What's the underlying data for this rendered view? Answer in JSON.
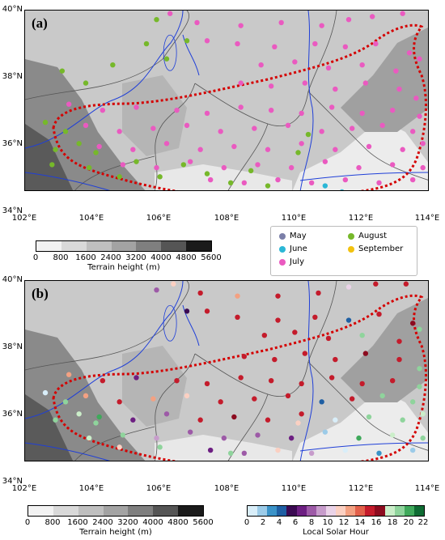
{
  "panels": [
    {
      "label": "(a)"
    },
    {
      "label": "(b)"
    }
  ],
  "axes": {
    "lat_labels": [
      "40°N",
      "38°N",
      "36°N",
      "34°N"
    ],
    "lon_labels": [
      "102°E",
      "104°E",
      "106°E",
      "108°E",
      "110°E",
      "112°E",
      "114°E"
    ]
  },
  "terrain_colorbar": {
    "ticks": [
      "0",
      "800",
      "1600",
      "2400",
      "3200",
      "4000",
      "4800",
      "5600"
    ],
    "title": "Terrain height (m)",
    "colors": [
      "#f2f2f2",
      "#d9d9d9",
      "#bfbfbf",
      "#a3a3a3",
      "#7f7f7f",
      "#555555",
      "#1a1a1a"
    ]
  },
  "month_legend": {
    "items": [
      {
        "label": "May",
        "color": "#7b7fa8"
      },
      {
        "label": "August",
        "color": "#76b82a"
      },
      {
        "label": "June",
        "color": "#2bb7d6"
      },
      {
        "label": "September",
        "color": "#f2c20f"
      },
      {
        "label": "July",
        "color": "#ea5ac0"
      }
    ]
  },
  "hour_colorbar": {
    "ticks": [
      "0",
      "2",
      "4",
      "6",
      "8",
      "10",
      "12",
      "14",
      "16",
      "18",
      "20",
      "22"
    ],
    "title": "Local Solar Hour",
    "colors": [
      "#d9eef9",
      "#9ccbe8",
      "#3b93c8",
      "#1f5fa3",
      "#3b0a52",
      "#6d1f82",
      "#9d5aa7",
      "#c79ccb",
      "#ead3e8",
      "#fbd0c2",
      "#f3a182",
      "#e2604a",
      "#c41b2b",
      "#8c0b1f",
      "#cbeec9",
      "#8fd49c",
      "#3fa95b",
      "#0e6b33"
    ]
  },
  "chart_data": [
    {
      "type": "scatter",
      "title": "(a)",
      "xlim": [
        102,
        114
      ],
      "ylim": [
        34,
        40
      ],
      "series": [
        {
          "name": "July",
          "color": "#ea5ac0",
          "points": [
            [
              106.3,
              39.9
            ],
            [
              107.1,
              39.6
            ],
            [
              108.4,
              39.5
            ],
            [
              109.6,
              39.6
            ],
            [
              110.8,
              39.5
            ],
            [
              111.6,
              39.7
            ],
            [
              112.3,
              39.8
            ],
            [
              113.2,
              39.9
            ],
            [
              107.4,
              39.0
            ],
            [
              108.3,
              38.9
            ],
            [
              109.4,
              38.8
            ],
            [
              110.6,
              38.9
            ],
            [
              111.5,
              38.8
            ],
            [
              112.4,
              38.9
            ],
            [
              113.4,
              38.6
            ],
            [
              109.0,
              38.2
            ],
            [
              110.0,
              38.3
            ],
            [
              111.0,
              38.1
            ],
            [
              112.0,
              38.2
            ],
            [
              113.0,
              38.0
            ],
            [
              113.7,
              38.4
            ],
            [
              108.4,
              37.6
            ],
            [
              109.3,
              37.5
            ],
            [
              110.3,
              37.6
            ],
            [
              111.2,
              37.4
            ],
            [
              112.1,
              37.6
            ],
            [
              113.1,
              37.4
            ],
            [
              113.6,
              37.1
            ],
            [
              103.3,
              36.9
            ],
            [
              104.3,
              36.7
            ],
            [
              105.3,
              36.8
            ],
            [
              106.5,
              36.7
            ],
            [
              107.4,
              36.6
            ],
            [
              108.4,
              36.8
            ],
            [
              109.3,
              36.7
            ],
            [
              110.2,
              36.6
            ],
            [
              111.1,
              36.8
            ],
            [
              112.0,
              36.6
            ],
            [
              112.9,
              36.7
            ],
            [
              113.7,
              36.5
            ],
            [
              103.8,
              36.2
            ],
            [
              104.8,
              36.0
            ],
            [
              105.8,
              36.1
            ],
            [
              106.8,
              36.2
            ],
            [
              107.8,
              36.0
            ],
            [
              108.8,
              36.1
            ],
            [
              109.8,
              36.2
            ],
            [
              110.8,
              36.0
            ],
            [
              111.7,
              36.1
            ],
            [
              112.6,
              36.2
            ],
            [
              113.5,
              36.0
            ],
            [
              104.2,
              35.5
            ],
            [
              105.2,
              35.4
            ],
            [
              106.2,
              35.6
            ],
            [
              107.2,
              35.4
            ],
            [
              108.2,
              35.5
            ],
            [
              109.2,
              35.4
            ],
            [
              110.2,
              35.6
            ],
            [
              111.2,
              35.4
            ],
            [
              112.2,
              35.5
            ],
            [
              113.2,
              35.4
            ],
            [
              113.8,
              35.6
            ],
            [
              104.9,
              34.9
            ],
            [
              105.9,
              34.8
            ],
            [
              106.9,
              35.0
            ],
            [
              107.9,
              34.8
            ],
            [
              108.9,
              34.9
            ],
            [
              109.9,
              34.8
            ],
            [
              110.9,
              35.0
            ],
            [
              111.9,
              34.8
            ],
            [
              112.9,
              34.9
            ],
            [
              113.8,
              34.8
            ],
            [
              107.5,
              34.4
            ],
            [
              108.5,
              34.3
            ],
            [
              109.5,
              34.4
            ],
            [
              110.5,
              34.3
            ],
            [
              111.5,
              34.4
            ],
            [
              112.5,
              34.3
            ],
            [
              113.5,
              34.4
            ]
          ]
        },
        {
          "name": "August",
          "color": "#76b82a",
          "points": [
            [
              105.9,
              39.7
            ],
            [
              106.8,
              39.0
            ],
            [
              106.2,
              38.4
            ],
            [
              105.6,
              38.9
            ],
            [
              103.1,
              38.0
            ],
            [
              103.8,
              37.6
            ],
            [
              104.6,
              38.2
            ],
            [
              102.6,
              36.3
            ],
            [
              103.2,
              36.0
            ],
            [
              103.6,
              35.6
            ],
            [
              104.1,
              35.3
            ],
            [
              102.9,
              35.4
            ],
            [
              105.3,
              35.0
            ],
            [
              106.0,
              34.5
            ],
            [
              106.7,
              34.9
            ],
            [
              107.4,
              34.6
            ],
            [
              108.1,
              34.3
            ],
            [
              108.7,
              34.7
            ],
            [
              109.2,
              34.2
            ],
            [
              110.1,
              35.3
            ],
            [
              110.4,
              35.9
            ],
            [
              104.8,
              34.5
            ],
            [
              103.9,
              34.8
            ],
            [
              102.8,
              34.9
            ]
          ]
        },
        {
          "name": "June",
          "color": "#2bb7d6",
          "points": [
            [
              110.9,
              34.2
            ],
            [
              111.4,
              34.0
            ]
          ]
        }
      ]
    },
    {
      "type": "scatter",
      "title": "(b)",
      "xlim": [
        102,
        114
      ],
      "ylim": [
        34,
        40
      ],
      "points": [
        [
          106.4,
          39.9,
          12
        ],
        [
          107.2,
          39.6,
          16
        ],
        [
          108.3,
          39.5,
          14
        ],
        [
          109.5,
          39.5,
          17
        ],
        [
          110.7,
          39.6,
          16
        ],
        [
          111.6,
          39.8,
          11
        ],
        [
          112.4,
          39.9,
          16
        ],
        [
          113.3,
          39.9,
          17
        ],
        [
          107.4,
          39.0,
          16
        ],
        [
          108.3,
          38.8,
          17
        ],
        [
          109.5,
          38.7,
          16
        ],
        [
          110.6,
          38.8,
          16
        ],
        [
          111.6,
          38.7,
          4
        ],
        [
          112.5,
          38.9,
          17
        ],
        [
          113.5,
          38.6,
          18
        ],
        [
          109.1,
          38.2,
          16
        ],
        [
          110.0,
          38.3,
          16
        ],
        [
          111.0,
          38.1,
          17
        ],
        [
          112.0,
          38.2,
          20
        ],
        [
          113.1,
          38.0,
          17
        ],
        [
          113.7,
          38.4,
          20
        ],
        [
          108.5,
          37.5,
          17
        ],
        [
          109.4,
          37.4,
          17
        ],
        [
          110.3,
          37.6,
          16
        ],
        [
          111.2,
          37.4,
          16
        ],
        [
          112.1,
          37.6,
          18
        ],
        [
          113.1,
          37.4,
          17
        ],
        [
          113.7,
          37.1,
          20
        ],
        [
          103.3,
          36.9,
          14
        ],
        [
          104.3,
          36.7,
          16
        ],
        [
          105.3,
          36.8,
          7
        ],
        [
          106.5,
          36.7,
          16
        ],
        [
          107.4,
          36.6,
          17
        ],
        [
          108.4,
          36.8,
          17
        ],
        [
          109.3,
          36.7,
          16
        ],
        [
          110.2,
          36.6,
          16
        ],
        [
          111.1,
          36.8,
          17
        ],
        [
          112.0,
          36.6,
          16
        ],
        [
          112.9,
          36.7,
          17
        ],
        [
          113.7,
          36.5,
          21
        ],
        [
          103.8,
          36.2,
          14
        ],
        [
          104.8,
          36.0,
          17
        ],
        [
          105.8,
          36.1,
          14
        ],
        [
          106.8,
          36.2,
          12
        ],
        [
          107.8,
          36.0,
          16
        ],
        [
          108.8,
          36.1,
          17
        ],
        [
          109.8,
          36.2,
          16
        ],
        [
          110.8,
          36.0,
          4
        ],
        [
          111.7,
          36.1,
          17
        ],
        [
          112.6,
          36.2,
          20
        ],
        [
          113.5,
          36.0,
          20
        ],
        [
          104.2,
          35.5,
          22
        ],
        [
          105.2,
          35.4,
          7
        ],
        [
          106.2,
          35.6,
          9
        ],
        [
          107.2,
          35.4,
          16
        ],
        [
          108.2,
          35.5,
          18
        ],
        [
          109.2,
          35.4,
          17
        ],
        [
          110.2,
          35.6,
          16
        ],
        [
          111.2,
          35.4,
          0
        ],
        [
          112.2,
          35.5,
          20
        ],
        [
          113.2,
          35.4,
          21
        ],
        [
          113.8,
          35.6,
          19
        ],
        [
          104.9,
          34.9,
          20
        ],
        [
          105.9,
          34.8,
          10
        ],
        [
          106.9,
          35.0,
          8
        ],
        [
          107.9,
          34.8,
          9
        ],
        [
          108.9,
          34.9,
          8
        ],
        [
          109.9,
          34.8,
          7
        ],
        [
          110.9,
          35.0,
          2
        ],
        [
          111.9,
          34.8,
          22
        ],
        [
          112.9,
          34.9,
          19
        ],
        [
          113.8,
          34.8,
          20
        ],
        [
          107.5,
          34.4,
          7
        ],
        [
          108.5,
          34.3,
          8
        ],
        [
          109.5,
          34.4,
          12
        ],
        [
          110.5,
          34.3,
          10
        ],
        [
          111.5,
          34.4,
          1
        ],
        [
          112.5,
          34.3,
          3
        ],
        [
          113.5,
          34.4,
          2
        ],
        [
          105.9,
          39.7,
          9
        ],
        [
          106.8,
          39.0,
          6
        ],
        [
          102.6,
          36.3,
          1
        ],
        [
          103.2,
          36.0,
          20
        ],
        [
          103.6,
          35.6,
          19
        ],
        [
          102.9,
          35.4,
          21
        ],
        [
          104.1,
          35.3,
          20
        ],
        [
          106.0,
          34.5,
          21
        ],
        [
          108.1,
          34.3,
          20
        ],
        [
          110.1,
          35.3,
          12
        ],
        [
          104.8,
          34.5,
          13
        ],
        [
          103.9,
          34.8,
          19
        ]
      ]
    }
  ]
}
